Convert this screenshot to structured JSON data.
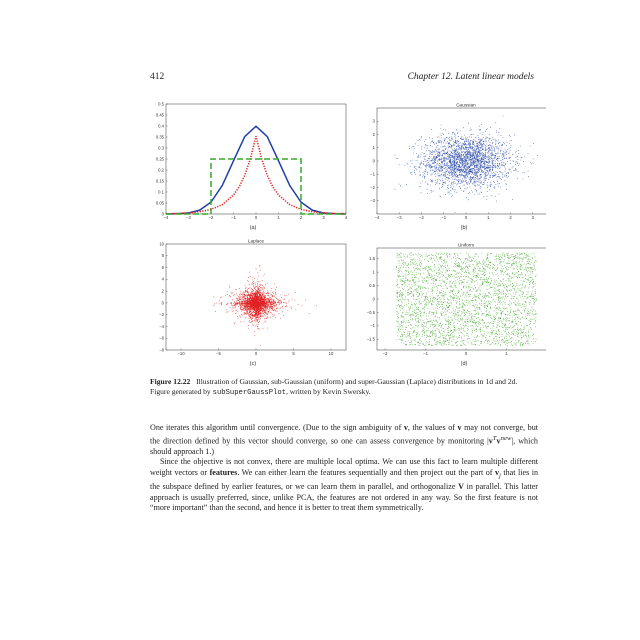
{
  "header": {
    "page_number": "412",
    "chapter": "Chapter 12.  Latent linear models"
  },
  "figure": {
    "sublabels": [
      "(a)",
      "(b)",
      "(c)",
      "(d)"
    ]
  },
  "chart_data": [
    {
      "type": "line",
      "title": "",
      "xlim": [
        -4,
        4
      ],
      "ylim": [
        0,
        0.5
      ],
      "xticks": [
        "−4",
        "−3",
        "−2",
        "−1",
        "0",
        "1",
        "2",
        "3",
        "4"
      ],
      "yticks": [
        "0",
        "0.05",
        "0.1",
        "0.15",
        "0.2",
        "0.25",
        "0.3",
        "0.35",
        "0.4",
        "0.45",
        "0.5"
      ],
      "series": [
        {
          "style": "solid",
          "color": "#1f3fa8",
          "x": [
            -4,
            -3.5,
            -3,
            -2.5,
            -2,
            -1.5,
            -1,
            -0.5,
            0,
            0.5,
            1,
            1.5,
            2,
            2.5,
            3,
            3.5,
            4
          ],
          "y": [
            0.0001,
            0.0009,
            0.0044,
            0.0175,
            0.054,
            0.1295,
            0.242,
            0.352,
            0.399,
            0.352,
            0.242,
            0.1295,
            0.054,
            0.0175,
            0.0044,
            0.0009,
            0.0001
          ]
        },
        {
          "style": "dotted",
          "color": "#e02020",
          "x": [
            -4,
            -3.5,
            -3,
            -2.5,
            -2,
            -1.5,
            -1,
            -0.75,
            -0.5,
            -0.25,
            0,
            0.25,
            0.5,
            0.75,
            1,
            1.5,
            2,
            2.5,
            3,
            3.5,
            4
          ],
          "y": [
            0.0012,
            0.0025,
            0.0051,
            0.0103,
            0.0209,
            0.0425,
            0.0864,
            0.1232,
            0.1757,
            0.2505,
            0.3536,
            0.2505,
            0.1757,
            0.1232,
            0.0864,
            0.0425,
            0.0209,
            0.0103,
            0.0051,
            0.0025,
            0.0012
          ]
        },
        {
          "style": "dashed",
          "color": "#3aa82c",
          "x": [
            -4,
            -2,
            -2,
            2,
            2,
            4
          ],
          "y": [
            0,
            0,
            0.25,
            0.25,
            0,
            0
          ]
        }
      ]
    },
    {
      "type": "scatter",
      "title": "Gaussian",
      "color": "#2a4aa8",
      "xlim": [
        -4,
        4
      ],
      "ylim": [
        -4,
        4
      ],
      "xticks": [
        "−4",
        "−3",
        "−2",
        "−1",
        "0",
        "1",
        "2",
        "3",
        "4"
      ],
      "yticks": [
        "−3",
        "−2",
        "−1",
        "0",
        "1",
        "2",
        "3"
      ]
    },
    {
      "type": "scatter",
      "title": "Laplace",
      "color": "#e02020",
      "xlim": [
        -12,
        12
      ],
      "ylim": [
        -8,
        10
      ],
      "xticks": [
        "−10",
        "−5",
        "0",
        "5",
        "10"
      ],
      "yticks": [
        "−8",
        "−6",
        "−4",
        "−2",
        "0",
        "2",
        "4",
        "6",
        "8",
        "10"
      ]
    },
    {
      "type": "scatter",
      "title": "Uniform",
      "color": "#4aa832",
      "xlim": [
        -2.2,
        2.2
      ],
      "ylim": [
        -1.9,
        1.9
      ],
      "xticks": [
        "−2",
        "−1",
        "0",
        "1",
        "2"
      ],
      "yticks": [
        "−1.5",
        "−1",
        "−0.5",
        "0",
        "0.5",
        "1",
        "1.5"
      ]
    }
  ],
  "caption": {
    "label": "Figure 12.22",
    "text_1": "Illustration of Gaussian, sub-Gaussian (uniform) and super-Gaussian (Laplace) distributions in 1d and 2d. Figure generated by ",
    "code": "subSuperGaussPlot",
    "text_2": ", written by Kevin Swersky."
  },
  "body": {
    "p1_a": "One iterates this algorithm until convergence. (Due to the sign ambiguity of ",
    "p1_v1": "v",
    "p1_b": ", the values of ",
    "p1_v2": "v",
    "p1_c": " may not converge, but the direction defined by this vector should converge, so one can assess convergence by monitoring |",
    "p1_math": "v",
    "p1_sup": "T",
    "p1_math2": "v",
    "p1_sup2": "new",
    "p1_d": "|, which should approach 1.)",
    "p2_a": "Since the objective is not convex, there are multiple local optima. We can use this fact to learn multiple different weight vectors or ",
    "p2_bold": "features",
    "p2_b": ". We can either learn the features sequentially and then project out the part of ",
    "p2_vj": "v",
    "p2_sub": "j",
    "p2_c": " that lies in the subspace defined by earlier features, or we can learn them in parallel, and orthogonalize ",
    "p2_V": "V",
    "p2_d": " in parallel. This latter approach is usually preferred, since, unlike PCA, the features are not ordered in any way. So the first feature is not “more important” than the second, and hence it is better to treat them symmetrically."
  }
}
